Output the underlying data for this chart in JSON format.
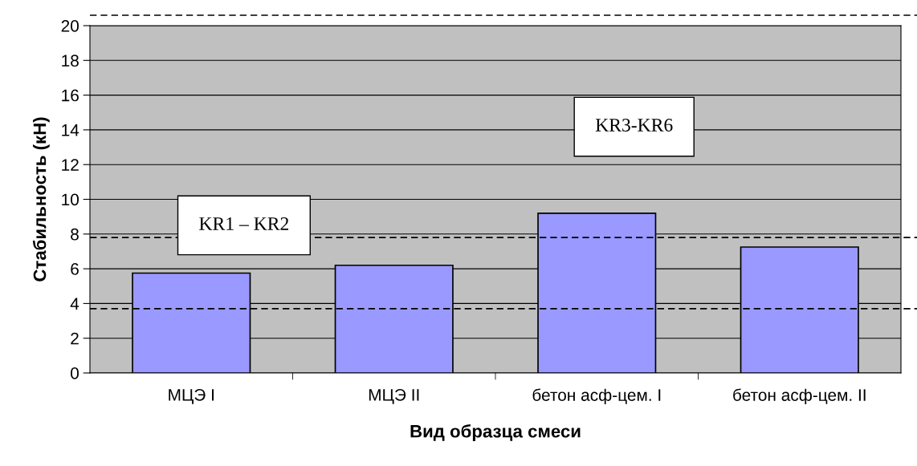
{
  "chart_data": {
    "type": "bar",
    "xlabel": "Вид образца смеси",
    "ylabel": "Стабильность (кН)",
    "categories": [
      "МЦЭ I",
      "МЦЭ II",
      "бетон асф-цем. I",
      "бетон асф-цем. II"
    ],
    "values": [
      5.75,
      6.2,
      9.2,
      7.25
    ],
    "color": "#9999ff",
    "ylim": [
      0,
      20
    ],
    "yticks": [
      0,
      2,
      4,
      6,
      8,
      10,
      12,
      14,
      16,
      18,
      20
    ],
    "grid": "y",
    "ref_lines": [
      {
        "axis": "y",
        "value": 3.7,
        "color": "#000000",
        "line_style": "dashed"
      },
      {
        "axis": "y",
        "value": 7.8,
        "color": "#000000",
        "line_style": "dashed"
      },
      {
        "axis": "y",
        "value": 20.6,
        "color": "#000000",
        "line_style": "dashed"
      }
    ],
    "annotations": [
      "KR1 – KR2",
      "KR3-KR6"
    ]
  }
}
